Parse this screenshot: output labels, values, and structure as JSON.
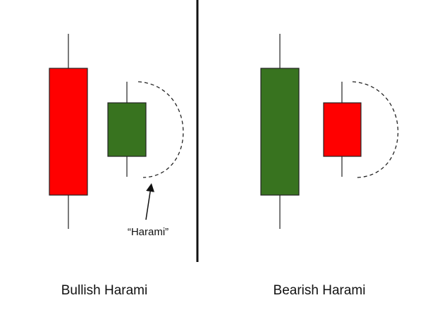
{
  "colors": {
    "bearish": "#ff0000",
    "bullish": "#38731f",
    "outline": "#222222"
  },
  "panels": [
    {
      "title": "Bullish Harami",
      "large_candle": "bearish",
      "small_candle": "bullish",
      "annotation": "“Harami”"
    },
    {
      "title": "Bearish Harami",
      "large_candle": "bullish",
      "small_candle": "bearish"
    }
  ]
}
